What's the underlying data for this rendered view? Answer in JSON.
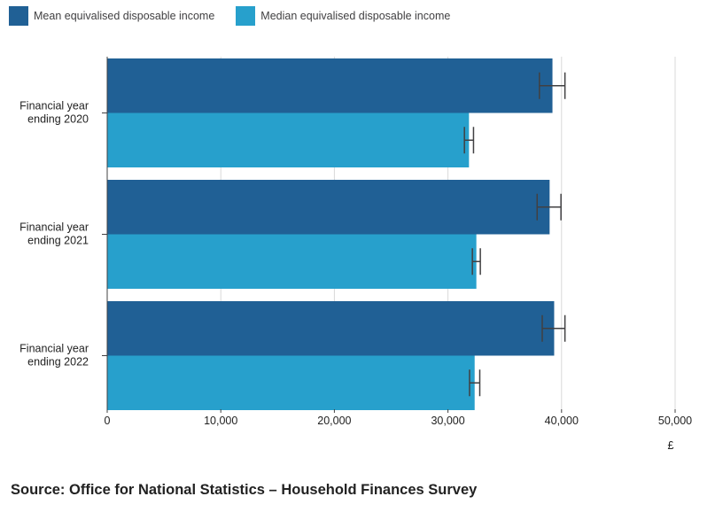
{
  "legend": [
    {
      "label": "Mean equivalised disposable income",
      "color": "#206095"
    },
    {
      "label": "Median equivalised disposable income",
      "color": "#27a0cc"
    }
  ],
  "chart_data": {
    "type": "bar",
    "orientation": "horizontal",
    "categories": [
      [
        "Financial year",
        "ending 2020"
      ],
      [
        "Financial year",
        "ending 2021"
      ],
      [
        "Financial year",
        "ending 2022"
      ]
    ],
    "series": [
      {
        "name": "Mean equivalised disposable income",
        "color": "#206095",
        "values": [
          39200,
          38950,
          39350
        ],
        "error_low": [
          38050,
          37850,
          38300
        ],
        "error_high": [
          40300,
          39950,
          40300
        ]
      },
      {
        "name": "Median equivalised disposable income",
        "color": "#27a0cc",
        "values": [
          31850,
          32500,
          32350
        ],
        "error_low": [
          31450,
          32150,
          31900
        ],
        "error_high": [
          32250,
          32850,
          32800
        ]
      }
    ],
    "xlim": [
      0,
      50000
    ],
    "xticks": [
      0,
      10000,
      20000,
      30000,
      40000,
      50000
    ],
    "xtick_labels": [
      "0",
      "10,000",
      "20,000",
      "30,000",
      "40,000",
      "50,000"
    ],
    "xunit": "£",
    "grid": true,
    "legend_position": "top-left"
  },
  "source": "Source: Office for National Statistics – Household Finances Survey"
}
